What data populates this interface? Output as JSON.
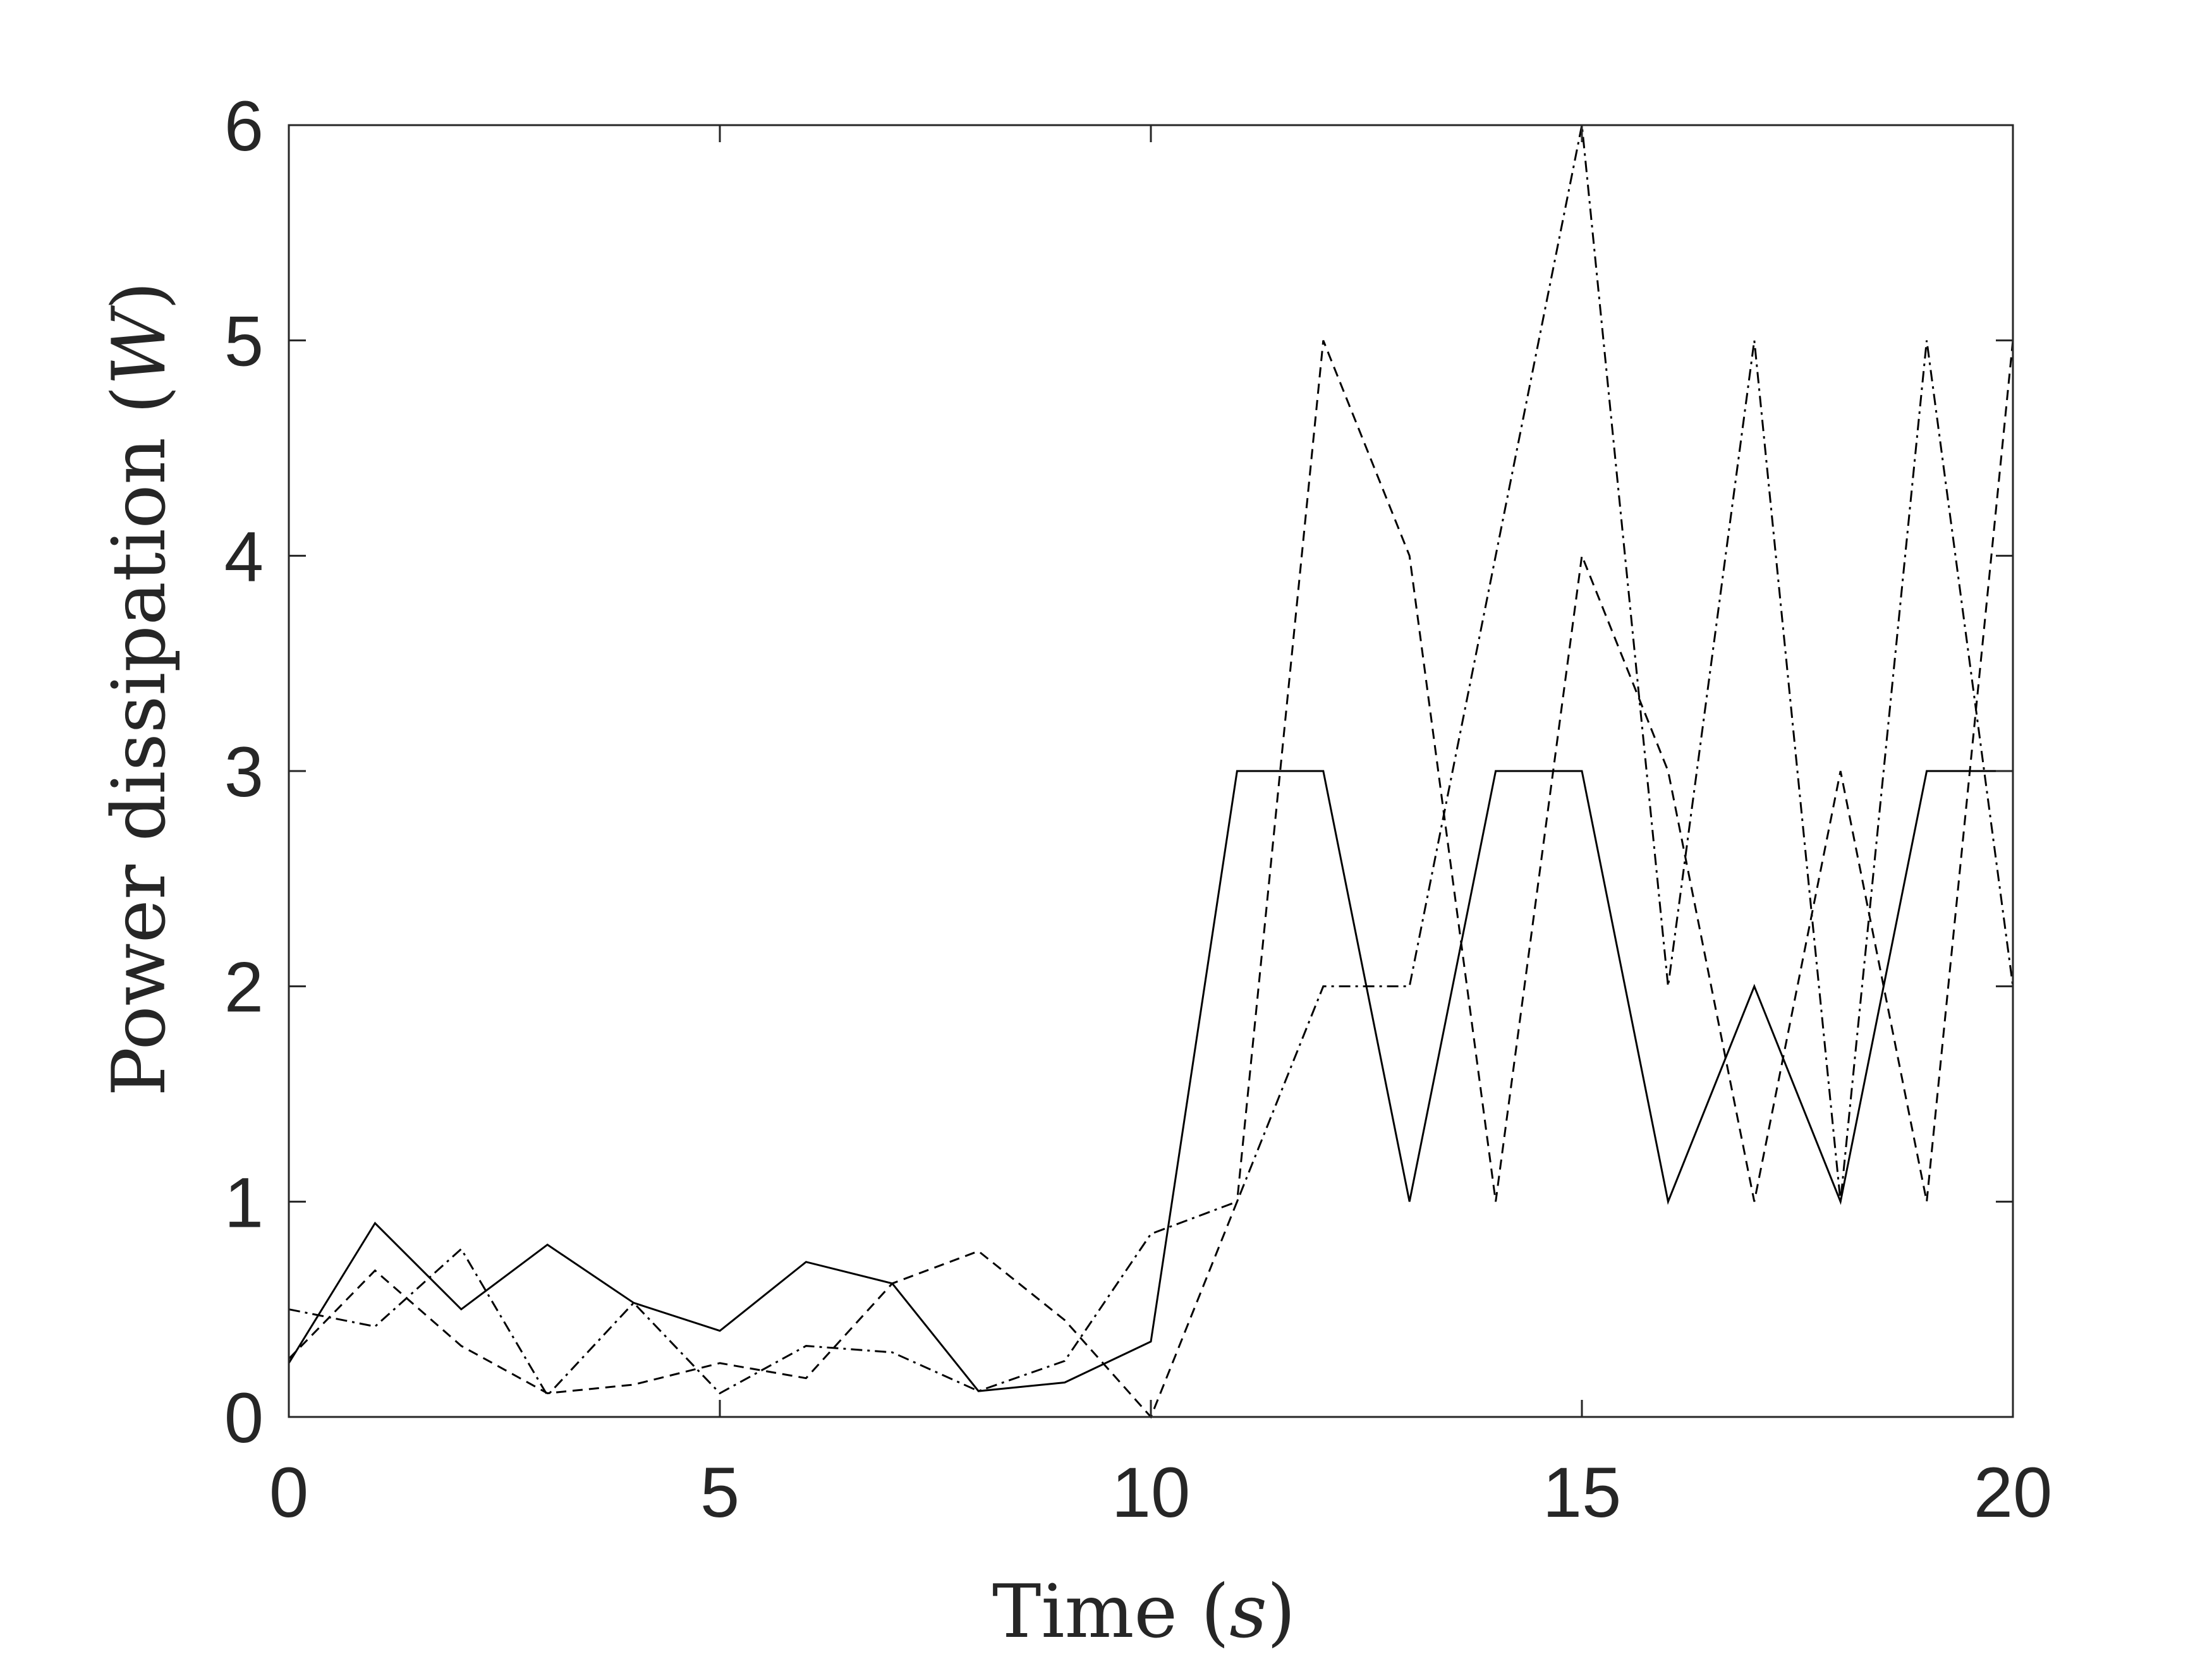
{
  "chart_data": {
    "type": "line",
    "xlabel": "Time",
    "xlabel_unit": "s",
    "ylabel": "Power dissipation",
    "ylabel_unit": "W",
    "xlim": [
      0,
      20
    ],
    "ylim": [
      0,
      6
    ],
    "xticks": [
      0,
      5,
      10,
      15,
      20
    ],
    "yticks": [
      0,
      1,
      2,
      3,
      4,
      5,
      6
    ],
    "grid": false,
    "legend": "none",
    "x": [
      0,
      1,
      2,
      3,
      4,
      5,
      6,
      7,
      8,
      9,
      10,
      11,
      12,
      13,
      14,
      15,
      16,
      17,
      18,
      19,
      20
    ],
    "series": [
      {
        "line_style": "solid",
        "color": "#000000",
        "values": [
          0.25,
          0.9,
          0.5,
          0.8,
          0.53,
          0.4,
          0.72,
          0.62,
          0.12,
          0.16,
          0.35,
          3,
          3,
          1,
          3,
          3,
          1,
          2,
          1,
          3,
          3
        ]
      },
      {
        "line_style": "dashed",
        "color": "#000000",
        "values": [
          0.27,
          0.68,
          0.33,
          0.11,
          0.15,
          0.25,
          0.18,
          0.62,
          0.77,
          0.45,
          0,
          1,
          5,
          4,
          1,
          4,
          3,
          1,
          3,
          1,
          5
        ]
      },
      {
        "line_style": "dash-dot",
        "color": "#000000",
        "values": [
          0.5,
          0.42,
          0.78,
          0.1,
          0.53,
          0.11,
          0.33,
          0.3,
          0.12,
          0.26,
          0.85,
          1,
          2,
          2,
          4,
          6,
          2,
          5,
          1,
          5,
          2
        ]
      }
    ]
  }
}
